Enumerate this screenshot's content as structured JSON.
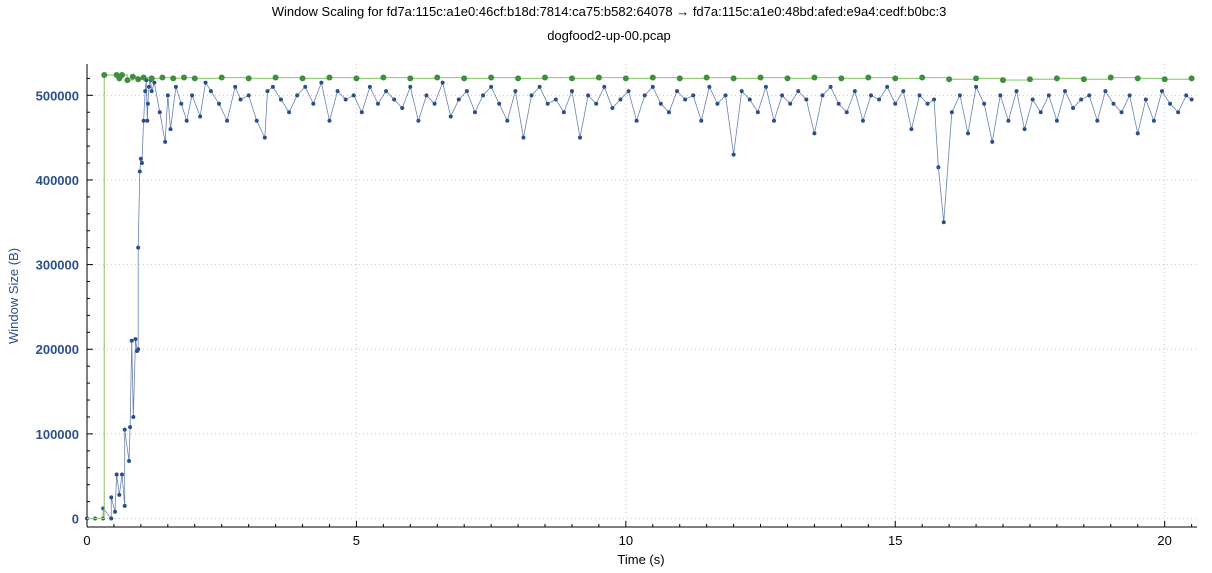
{
  "chart_data": {
    "type": "scatter",
    "title": "Window Scaling for fd7a:115c:a1e0:46cf:b18d:7814:ca75:b582:64078 → fd7a:115c:a1e0:48bd:afed:e9a4:cedf:b0bc:3",
    "subtitle": "dogfood2-up-00.pcap",
    "xlabel": "Time (s)",
    "ylabel": "Window Size (B)",
    "xlim": [
      0,
      20.6
    ],
    "ylim": [
      -10000,
      537000
    ],
    "grid": true,
    "x_ticks": [
      0,
      5,
      10,
      15,
      20
    ],
    "x_tick_labels": [
      "0",
      "5",
      "10",
      "15",
      "20"
    ],
    "y_ticks": [
      0,
      100000,
      200000,
      300000,
      400000,
      500000
    ],
    "y_tick_labels": [
      "0",
      "100000",
      "200000",
      "300000",
      "400000",
      "500000"
    ],
    "colors": {
      "bytes_in_flight": "#2b4f8c",
      "receive_window": "#9acd7a",
      "receive_window_points": "#3f8f3f"
    },
    "series": [
      {
        "key": "bytes_in_flight",
        "style": "line+points",
        "x": [
          0.0,
          0.15,
          0.3,
          0.3,
          0.45,
          0.45,
          0.52,
          0.55,
          0.6,
          0.65,
          0.7,
          0.7,
          0.78,
          0.8,
          0.83,
          0.86,
          0.9,
          0.93,
          0.95,
          0.95,
          0.98,
          1.0,
          1.02,
          1.05,
          1.08,
          1.1,
          1.12,
          1.13,
          1.15,
          1.18,
          1.2,
          1.25,
          1.35,
          1.45,
          1.5,
          1.55,
          1.65,
          1.75,
          1.85,
          1.95,
          2.1,
          2.2,
          2.3,
          2.45,
          2.6,
          2.75,
          2.85,
          3.0,
          3.15,
          3.3,
          3.35,
          3.45,
          3.6,
          3.75,
          3.9,
          4.05,
          4.2,
          4.35,
          4.5,
          4.65,
          4.8,
          4.95,
          5.1,
          5.25,
          5.4,
          5.55,
          5.7,
          5.85,
          6.0,
          6.15,
          6.3,
          6.45,
          6.6,
          6.75,
          6.9,
          7.05,
          7.2,
          7.35,
          7.5,
          7.65,
          7.8,
          7.95,
          8.1,
          8.25,
          8.4,
          8.55,
          8.7,
          8.85,
          9.0,
          9.15,
          9.3,
          9.45,
          9.6,
          9.75,
          9.9,
          10.05,
          10.2,
          10.35,
          10.5,
          10.65,
          10.8,
          10.95,
          11.1,
          11.25,
          11.4,
          11.55,
          11.7,
          11.85,
          12.0,
          12.15,
          12.3,
          12.45,
          12.6,
          12.75,
          12.9,
          13.05,
          13.2,
          13.35,
          13.5,
          13.65,
          13.8,
          13.95,
          14.1,
          14.25,
          14.4,
          14.55,
          14.7,
          14.85,
          15.0,
          15.15,
          15.3,
          15.45,
          15.6,
          15.72,
          15.8,
          15.9,
          16.05,
          16.2,
          16.35,
          16.5,
          16.65,
          16.8,
          16.95,
          17.1,
          17.25,
          17.4,
          17.55,
          17.7,
          17.85,
          18.0,
          18.15,
          18.3,
          18.45,
          18.6,
          18.75,
          18.9,
          19.05,
          19.2,
          19.35,
          19.5,
          19.65,
          19.8,
          19.95,
          20.1,
          20.25,
          20.4,
          20.5
        ],
        "y": [
          0,
          0,
          0,
          12000,
          0,
          25000,
          8000,
          52000,
          28000,
          52000,
          15000,
          105000,
          68000,
          108000,
          210000,
          120000,
          212000,
          198000,
          200000,
          320000,
          410000,
          425000,
          420000,
          470000,
          505000,
          518000,
          470000,
          490000,
          510000,
          518000,
          505000,
          515000,
          480000,
          445000,
          500000,
          460000,
          510000,
          490000,
          470000,
          500000,
          475000,
          515000,
          505000,
          490000,
          470000,
          510000,
          495000,
          500000,
          470000,
          450000,
          505000,
          510000,
          495000,
          480000,
          500000,
          510000,
          490000,
          515000,
          470000,
          505000,
          495000,
          500000,
          480000,
          510000,
          490000,
          505000,
          495000,
          485000,
          510000,
          470000,
          500000,
          490000,
          515000,
          475000,
          495000,
          505000,
          480000,
          500000,
          510000,
          490000,
          470000,
          505000,
          450000,
          500000,
          510000,
          490000,
          495000,
          480000,
          505000,
          450000,
          500000,
          490000,
          510000,
          485000,
          495000,
          505000,
          470000,
          500000,
          510000,
          490000,
          480000,
          505000,
          495000,
          500000,
          470000,
          510000,
          490000,
          500000,
          430000,
          505000,
          495000,
          480000,
          510000,
          470000,
          500000,
          490000,
          505000,
          495000,
          455000,
          500000,
          510000,
          490000,
          480000,
          505000,
          470000,
          500000,
          495000,
          510000,
          490000,
          505000,
          460000,
          500000,
          490000,
          495000,
          415000,
          350000,
          480000,
          500000,
          455000,
          510000,
          490000,
          445000,
          500000,
          470000,
          505000,
          460000,
          495000,
          480000,
          500000,
          470000,
          505000,
          485000,
          495000,
          500000,
          470000,
          505000,
          490000,
          480000,
          500000,
          455000,
          495000,
          470000,
          505000,
          490000,
          480000,
          500000,
          495000
        ]
      },
      {
        "key": "receive_window",
        "style": "step+points",
        "x": [
          0.0,
          0.3,
          0.32,
          0.55,
          0.6,
          0.65,
          0.75,
          0.85,
          0.95,
          1.05,
          1.2,
          1.4,
          1.6,
          1.8,
          2.0,
          2.5,
          3.0,
          3.5,
          4.0,
          4.5,
          5.0,
          5.5,
          6.0,
          6.5,
          7.0,
          7.5,
          8.0,
          8.5,
          9.0,
          9.5,
          10.0,
          10.5,
          11.0,
          11.5,
          12.0,
          12.5,
          13.0,
          13.5,
          14.0,
          14.5,
          15.0,
          15.5,
          16.0,
          16.5,
          17.0,
          17.5,
          18.0,
          18.5,
          19.0,
          19.5,
          20.0,
          20.5
        ],
        "y": [
          0,
          0,
          524000,
          524000,
          520000,
          524000,
          518000,
          522000,
          519000,
          521000,
          520000,
          521000,
          520000,
          521000,
          520000,
          521000,
          520000,
          521000,
          520000,
          521000,
          520000,
          521000,
          520000,
          521000,
          520000,
          521000,
          520000,
          521000,
          520000,
          521000,
          520000,
          521000,
          520000,
          521000,
          520000,
          521000,
          520000,
          521000,
          520000,
          521000,
          520000,
          521000,
          519000,
          520000,
          518000,
          519000,
          520000,
          519000,
          521000,
          520000,
          519000,
          520000
        ]
      }
    ]
  }
}
